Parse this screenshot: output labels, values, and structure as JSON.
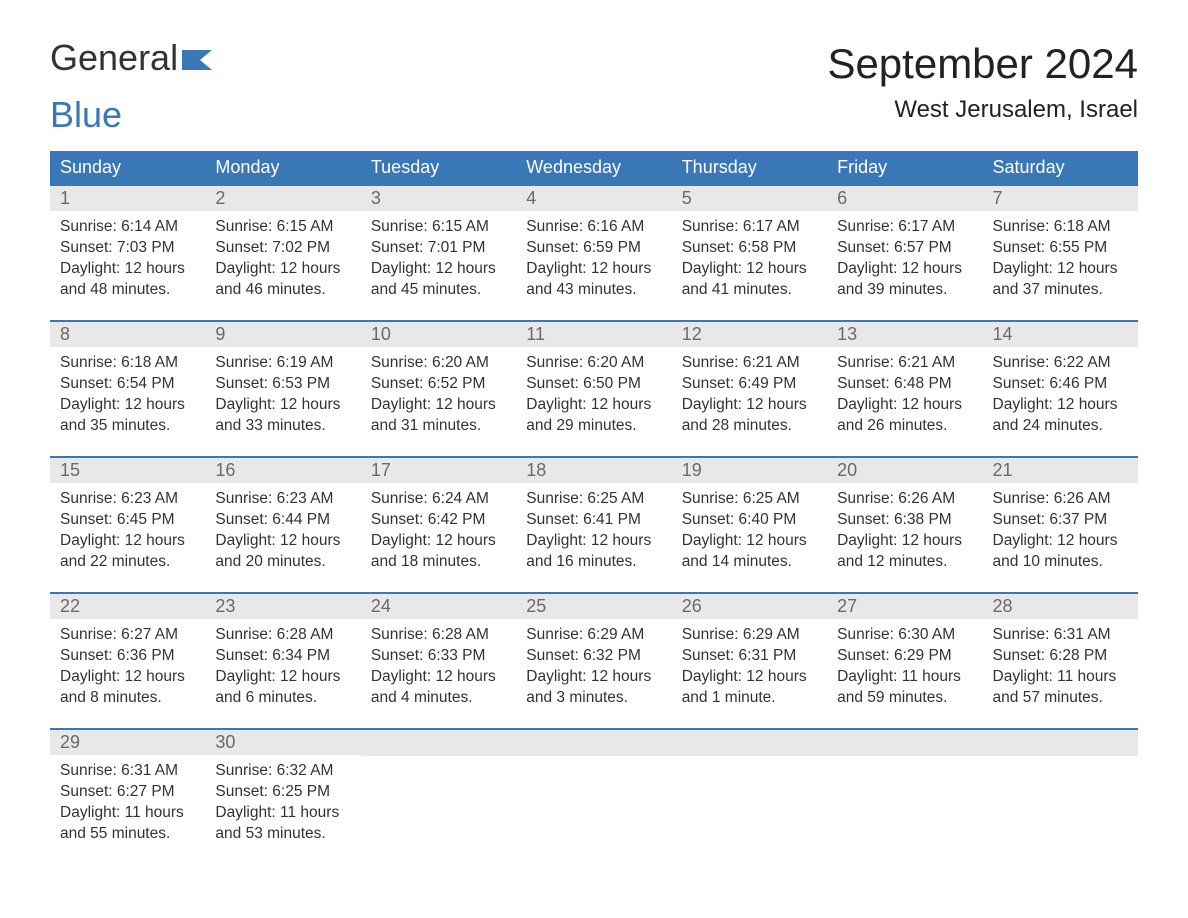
{
  "logo": {
    "word1": "General",
    "word2": "Blue"
  },
  "title": "September 2024",
  "location": "West Jerusalem, Israel",
  "colors": {
    "header_bg": "#3a77b7",
    "header_text": "#ffffff",
    "daynum_bg": "#e8e8e8",
    "daynum_text": "#6a6a6a",
    "body_text": "#333333",
    "row_border": "#3a77b7",
    "page_bg": "#ffffff",
    "logo_blue": "#3a77b7"
  },
  "weekdays": [
    "Sunday",
    "Monday",
    "Tuesday",
    "Wednesday",
    "Thursday",
    "Friday",
    "Saturday"
  ],
  "weeks": [
    [
      {
        "n": "1",
        "sr": "Sunrise: 6:14 AM",
        "ss": "Sunset: 7:03 PM",
        "d1": "Daylight: 12 hours",
        "d2": "and 48 minutes."
      },
      {
        "n": "2",
        "sr": "Sunrise: 6:15 AM",
        "ss": "Sunset: 7:02 PM",
        "d1": "Daylight: 12 hours",
        "d2": "and 46 minutes."
      },
      {
        "n": "3",
        "sr": "Sunrise: 6:15 AM",
        "ss": "Sunset: 7:01 PM",
        "d1": "Daylight: 12 hours",
        "d2": "and 45 minutes."
      },
      {
        "n": "4",
        "sr": "Sunrise: 6:16 AM",
        "ss": "Sunset: 6:59 PM",
        "d1": "Daylight: 12 hours",
        "d2": "and 43 minutes."
      },
      {
        "n": "5",
        "sr": "Sunrise: 6:17 AM",
        "ss": "Sunset: 6:58 PM",
        "d1": "Daylight: 12 hours",
        "d2": "and 41 minutes."
      },
      {
        "n": "6",
        "sr": "Sunrise: 6:17 AM",
        "ss": "Sunset: 6:57 PM",
        "d1": "Daylight: 12 hours",
        "d2": "and 39 minutes."
      },
      {
        "n": "7",
        "sr": "Sunrise: 6:18 AM",
        "ss": "Sunset: 6:55 PM",
        "d1": "Daylight: 12 hours",
        "d2": "and 37 minutes."
      }
    ],
    [
      {
        "n": "8",
        "sr": "Sunrise: 6:18 AM",
        "ss": "Sunset: 6:54 PM",
        "d1": "Daylight: 12 hours",
        "d2": "and 35 minutes."
      },
      {
        "n": "9",
        "sr": "Sunrise: 6:19 AM",
        "ss": "Sunset: 6:53 PM",
        "d1": "Daylight: 12 hours",
        "d2": "and 33 minutes."
      },
      {
        "n": "10",
        "sr": "Sunrise: 6:20 AM",
        "ss": "Sunset: 6:52 PM",
        "d1": "Daylight: 12 hours",
        "d2": "and 31 minutes."
      },
      {
        "n": "11",
        "sr": "Sunrise: 6:20 AM",
        "ss": "Sunset: 6:50 PM",
        "d1": "Daylight: 12 hours",
        "d2": "and 29 minutes."
      },
      {
        "n": "12",
        "sr": "Sunrise: 6:21 AM",
        "ss": "Sunset: 6:49 PM",
        "d1": "Daylight: 12 hours",
        "d2": "and 28 minutes."
      },
      {
        "n": "13",
        "sr": "Sunrise: 6:21 AM",
        "ss": "Sunset: 6:48 PM",
        "d1": "Daylight: 12 hours",
        "d2": "and 26 minutes."
      },
      {
        "n": "14",
        "sr": "Sunrise: 6:22 AM",
        "ss": "Sunset: 6:46 PM",
        "d1": "Daylight: 12 hours",
        "d2": "and 24 minutes."
      }
    ],
    [
      {
        "n": "15",
        "sr": "Sunrise: 6:23 AM",
        "ss": "Sunset: 6:45 PM",
        "d1": "Daylight: 12 hours",
        "d2": "and 22 minutes."
      },
      {
        "n": "16",
        "sr": "Sunrise: 6:23 AM",
        "ss": "Sunset: 6:44 PM",
        "d1": "Daylight: 12 hours",
        "d2": "and 20 minutes."
      },
      {
        "n": "17",
        "sr": "Sunrise: 6:24 AM",
        "ss": "Sunset: 6:42 PM",
        "d1": "Daylight: 12 hours",
        "d2": "and 18 minutes."
      },
      {
        "n": "18",
        "sr": "Sunrise: 6:25 AM",
        "ss": "Sunset: 6:41 PM",
        "d1": "Daylight: 12 hours",
        "d2": "and 16 minutes."
      },
      {
        "n": "19",
        "sr": "Sunrise: 6:25 AM",
        "ss": "Sunset: 6:40 PM",
        "d1": "Daylight: 12 hours",
        "d2": "and 14 minutes."
      },
      {
        "n": "20",
        "sr": "Sunrise: 6:26 AM",
        "ss": "Sunset: 6:38 PM",
        "d1": "Daylight: 12 hours",
        "d2": "and 12 minutes."
      },
      {
        "n": "21",
        "sr": "Sunrise: 6:26 AM",
        "ss": "Sunset: 6:37 PM",
        "d1": "Daylight: 12 hours",
        "d2": "and 10 minutes."
      }
    ],
    [
      {
        "n": "22",
        "sr": "Sunrise: 6:27 AM",
        "ss": "Sunset: 6:36 PM",
        "d1": "Daylight: 12 hours",
        "d2": "and 8 minutes."
      },
      {
        "n": "23",
        "sr": "Sunrise: 6:28 AM",
        "ss": "Sunset: 6:34 PM",
        "d1": "Daylight: 12 hours",
        "d2": "and 6 minutes."
      },
      {
        "n": "24",
        "sr": "Sunrise: 6:28 AM",
        "ss": "Sunset: 6:33 PM",
        "d1": "Daylight: 12 hours",
        "d2": "and 4 minutes."
      },
      {
        "n": "25",
        "sr": "Sunrise: 6:29 AM",
        "ss": "Sunset: 6:32 PM",
        "d1": "Daylight: 12 hours",
        "d2": "and 3 minutes."
      },
      {
        "n": "26",
        "sr": "Sunrise: 6:29 AM",
        "ss": "Sunset: 6:31 PM",
        "d1": "Daylight: 12 hours",
        "d2": "and 1 minute."
      },
      {
        "n": "27",
        "sr": "Sunrise: 6:30 AM",
        "ss": "Sunset: 6:29 PM",
        "d1": "Daylight: 11 hours",
        "d2": "and 59 minutes."
      },
      {
        "n": "28",
        "sr": "Sunrise: 6:31 AM",
        "ss": "Sunset: 6:28 PM",
        "d1": "Daylight: 11 hours",
        "d2": "and 57 minutes."
      }
    ],
    [
      {
        "n": "29",
        "sr": "Sunrise: 6:31 AM",
        "ss": "Sunset: 6:27 PM",
        "d1": "Daylight: 11 hours",
        "d2": "and 55 minutes."
      },
      {
        "n": "30",
        "sr": "Sunrise: 6:32 AM",
        "ss": "Sunset: 6:25 PM",
        "d1": "Daylight: 11 hours",
        "d2": "and 53 minutes."
      },
      {
        "n": "",
        "sr": "",
        "ss": "",
        "d1": "",
        "d2": ""
      },
      {
        "n": "",
        "sr": "",
        "ss": "",
        "d1": "",
        "d2": ""
      },
      {
        "n": "",
        "sr": "",
        "ss": "",
        "d1": "",
        "d2": ""
      },
      {
        "n": "",
        "sr": "",
        "ss": "",
        "d1": "",
        "d2": ""
      },
      {
        "n": "",
        "sr": "",
        "ss": "",
        "d1": "",
        "d2": ""
      }
    ]
  ]
}
